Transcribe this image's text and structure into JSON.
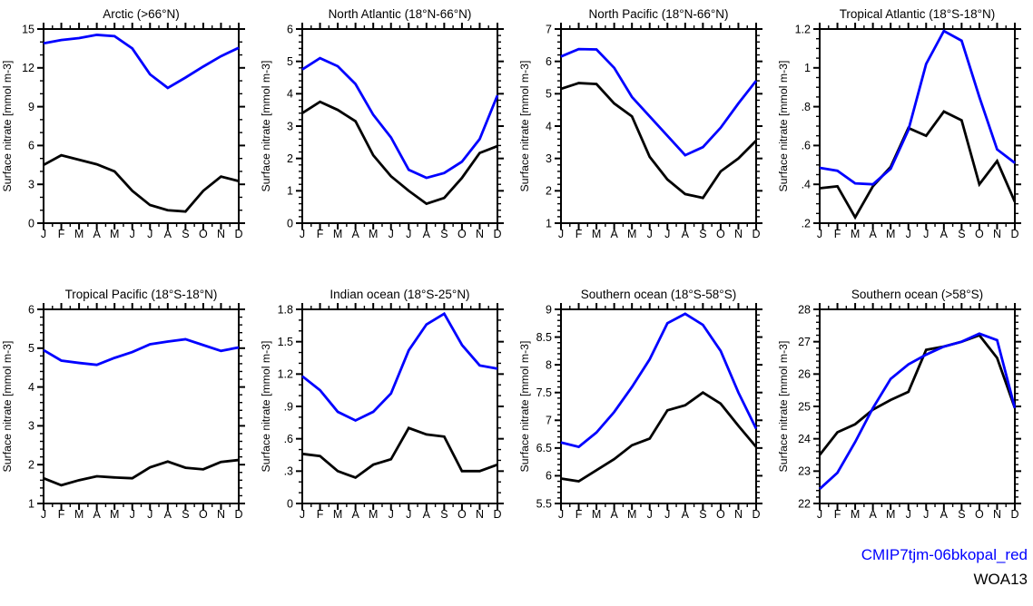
{
  "figure": {
    "ylabel": "Surface nitrate [mmol m-3]",
    "months": [
      "J",
      "F",
      "M",
      "A",
      "M",
      "J",
      "J",
      "A",
      "S",
      "O",
      "N",
      "D"
    ]
  },
  "legend": {
    "model_label": "CMIP7tjm-06bkopal_red",
    "model_color": "#0000ff",
    "obs_label": "WOA13",
    "obs_color": "#000000"
  },
  "chart_data": [
    {
      "type": "line",
      "title": "Arctic (>66°N)",
      "xlabel": "",
      "ylabel": "Surface nitrate [mmol m-3]",
      "categories": [
        "J",
        "F",
        "M",
        "A",
        "M",
        "J",
        "J",
        "A",
        "S",
        "O",
        "N",
        "D"
      ],
      "ylim": [
        0,
        15
      ],
      "yticks": [
        0,
        3,
        6,
        9,
        12,
        15
      ],
      "ytick_labels": [
        "0",
        "3",
        "6",
        "9",
        "12",
        "15"
      ],
      "yminor_step": 1,
      "grid": false,
      "series": [
        {
          "name": "CMIP7tjm-06bkopal_red",
          "color": "#0000ff",
          "values": [
            13.9,
            14.15,
            14.3,
            14.55,
            14.45,
            13.5,
            11.5,
            10.45,
            11.25,
            12.1,
            12.9,
            13.55
          ]
        },
        {
          "name": "WOA13",
          "color": "#000000",
          "values": [
            4.5,
            5.25,
            4.9,
            4.55,
            4.0,
            2.5,
            1.4,
            1.0,
            0.9,
            2.5,
            3.6,
            3.25
          ]
        }
      ]
    },
    {
      "type": "line",
      "title": "North Atlantic (18°N-66°N)",
      "xlabel": "",
      "ylabel": "Surface nitrate [mmol m-3]",
      "categories": [
        "J",
        "F",
        "M",
        "A",
        "M",
        "J",
        "J",
        "A",
        "S",
        "O",
        "N",
        "D"
      ],
      "ylim": [
        0,
        6
      ],
      "yticks": [
        0,
        1,
        2,
        3,
        4,
        5,
        6
      ],
      "ytick_labels": [
        "0",
        "1",
        "2",
        "3",
        "4",
        "5",
        "6"
      ],
      "yminor_step": 0.2,
      "grid": false,
      "series": [
        {
          "name": "CMIP7tjm-06bkopal_red",
          "color": "#0000ff",
          "values": [
            4.75,
            5.1,
            4.85,
            4.3,
            3.35,
            2.65,
            1.65,
            1.4,
            1.55,
            1.9,
            2.6,
            3.95
          ]
        },
        {
          "name": "WOA13",
          "color": "#000000",
          "values": [
            3.4,
            3.75,
            3.5,
            3.15,
            2.1,
            1.45,
            1.0,
            0.6,
            0.78,
            1.4,
            2.17,
            2.38
          ]
        }
      ]
    },
    {
      "type": "line",
      "title": "North Pacific (18°N-66°N)",
      "xlabel": "",
      "ylabel": "Surface nitrate [mmol m-3]",
      "categories": [
        "J",
        "F",
        "M",
        "A",
        "M",
        "J",
        "J",
        "A",
        "S",
        "O",
        "N",
        "D"
      ],
      "ylim": [
        1,
        7
      ],
      "yticks": [
        1,
        2,
        3,
        4,
        5,
        6,
        7
      ],
      "ytick_labels": [
        "1",
        "2",
        "3",
        "4",
        "5",
        "6",
        "7"
      ],
      "yminor_step": 0.2,
      "grid": false,
      "series": [
        {
          "name": "CMIP7tjm-06bkopal_red",
          "color": "#0000ff",
          "values": [
            6.15,
            6.38,
            6.37,
            5.8,
            4.9,
            4.3,
            3.7,
            3.1,
            3.35,
            3.95,
            4.7,
            5.4
          ]
        },
        {
          "name": "WOA13",
          "color": "#000000",
          "values": [
            5.15,
            5.33,
            5.3,
            4.7,
            4.3,
            3.05,
            2.35,
            1.9,
            1.78,
            2.6,
            3.0,
            3.55
          ]
        }
      ]
    },
    {
      "type": "line",
      "title": "Tropical Atlantic (18°S-18°N)",
      "xlabel": "",
      "ylabel": "Surface nitrate [mmol m-3]",
      "categories": [
        "J",
        "F",
        "M",
        "A",
        "M",
        "J",
        "J",
        "A",
        "S",
        "O",
        "N",
        "D"
      ],
      "ylim": [
        0.2,
        1.2
      ],
      "yticks": [
        0.2,
        0.4,
        0.6,
        0.8,
        1.0,
        1.2
      ],
      "ytick_labels": [
        ".2",
        ".4",
        ".6",
        ".8",
        "1",
        "1.2"
      ],
      "yminor_step": 0.05,
      "grid": false,
      "series": [
        {
          "name": "CMIP7tjm-06bkopal_red",
          "color": "#0000ff",
          "values": [
            0.485,
            0.47,
            0.405,
            0.4,
            0.48,
            0.68,
            1.02,
            1.19,
            1.14,
            0.85,
            0.58,
            0.51
          ]
        },
        {
          "name": "WOA13",
          "color": "#000000",
          "values": [
            0.38,
            0.39,
            0.23,
            0.39,
            0.49,
            0.69,
            0.65,
            0.775,
            0.73,
            0.4,
            0.52,
            0.31
          ]
        }
      ]
    },
    {
      "type": "line",
      "title": "Tropical Pacific (18°S-18°N)",
      "xlabel": "",
      "ylabel": "Surface nitrate [mmol m-3]",
      "categories": [
        "J",
        "F",
        "M",
        "A",
        "M",
        "J",
        "J",
        "A",
        "S",
        "O",
        "N",
        "D"
      ],
      "ylim": [
        1,
        6
      ],
      "yticks": [
        1,
        2,
        3,
        4,
        5,
        6
      ],
      "ytick_labels": [
        "1",
        "2",
        "3",
        "4",
        "5",
        "6"
      ],
      "yminor_step": 0.2,
      "grid": false,
      "series": [
        {
          "name": "CMIP7tjm-06bkopal_red",
          "color": "#0000ff",
          "values": [
            4.95,
            4.68,
            4.62,
            4.57,
            4.75,
            4.9,
            5.1,
            5.17,
            5.23,
            5.08,
            4.93,
            5.02
          ]
        },
        {
          "name": "WOA13",
          "color": "#000000",
          "values": [
            1.65,
            1.47,
            1.6,
            1.7,
            1.67,
            1.65,
            1.93,
            2.08,
            1.92,
            1.88,
            2.07,
            2.12
          ]
        }
      ]
    },
    {
      "type": "line",
      "title": "Indian ocean (18°S-25°N)",
      "xlabel": "",
      "ylabel": "Surface nitrate [mmol m-3]",
      "categories": [
        "J",
        "F",
        "M",
        "A",
        "M",
        "J",
        "J",
        "A",
        "S",
        "O",
        "N",
        "D"
      ],
      "ylim": [
        0,
        1.8
      ],
      "yticks": [
        0,
        0.3,
        0.6,
        0.9,
        1.2,
        1.5,
        1.8
      ],
      "ytick_labels": [
        "0",
        ".3",
        ".6",
        ".9",
        "1.2",
        "1.5",
        "1.8"
      ],
      "yminor_step": 0.1,
      "grid": false,
      "series": [
        {
          "name": "CMIP7tjm-06bkopal_red",
          "color": "#0000ff",
          "values": [
            1.18,
            1.05,
            0.85,
            0.77,
            0.85,
            1.02,
            1.42,
            1.66,
            1.76,
            1.47,
            1.28,
            1.25
          ]
        },
        {
          "name": "WOA13",
          "color": "#000000",
          "values": [
            0.46,
            0.44,
            0.3,
            0.24,
            0.36,
            0.41,
            0.7,
            0.64,
            0.62,
            0.3,
            0.3,
            0.36
          ]
        }
      ]
    },
    {
      "type": "line",
      "title": "Southern ocean (18°S-58°S)",
      "xlabel": "",
      "ylabel": "Surface nitrate [mmol m-3]",
      "categories": [
        "J",
        "F",
        "M",
        "A",
        "M",
        "J",
        "J",
        "A",
        "S",
        "O",
        "N",
        "D"
      ],
      "ylim": [
        5.5,
        9
      ],
      "yticks": [
        5.5,
        6,
        6.5,
        7,
        7.5,
        8,
        8.5,
        9
      ],
      "ytick_labels": [
        "5.5",
        "6",
        "6.5",
        "7",
        "7.5",
        "8",
        "8.5",
        "9"
      ],
      "yminor_step": 0.1,
      "grid": false,
      "series": [
        {
          "name": "CMIP7tjm-06bkopal_red",
          "color": "#0000ff",
          "values": [
            6.6,
            6.52,
            6.78,
            7.15,
            7.6,
            8.1,
            8.75,
            8.92,
            8.72,
            8.25,
            7.5,
            6.85
          ]
        },
        {
          "name": "WOA13",
          "color": "#000000",
          "values": [
            5.95,
            5.9,
            6.1,
            6.3,
            6.55,
            6.67,
            7.18,
            7.27,
            7.5,
            7.3,
            6.9,
            6.52
          ]
        }
      ]
    },
    {
      "type": "line",
      "title": "Southern ocean (>58°S)",
      "xlabel": "",
      "ylabel": "Surface nitrate [mmol m-3]",
      "categories": [
        "J",
        "F",
        "M",
        "A",
        "M",
        "J",
        "J",
        "A",
        "S",
        "O",
        "N",
        "D"
      ],
      "ylim": [
        22,
        28
      ],
      "yticks": [
        22,
        23,
        24,
        25,
        26,
        27,
        28
      ],
      "ytick_labels": [
        "22",
        "23",
        "24",
        "25",
        "26",
        "27",
        "28"
      ],
      "yminor_step": 0.2,
      "grid": false,
      "series": [
        {
          "name": "CMIP7tjm-06bkopal_red",
          "color": "#0000ff",
          "values": [
            22.45,
            22.95,
            23.9,
            24.95,
            25.85,
            26.3,
            26.6,
            26.85,
            27.0,
            27.25,
            27.05,
            24.95
          ]
        },
        {
          "name": "WOA13",
          "color": "#000000",
          "values": [
            23.5,
            24.2,
            24.45,
            24.9,
            25.2,
            25.45,
            26.75,
            26.85,
            27.0,
            27.2,
            26.5,
            24.95
          ]
        }
      ]
    }
  ]
}
